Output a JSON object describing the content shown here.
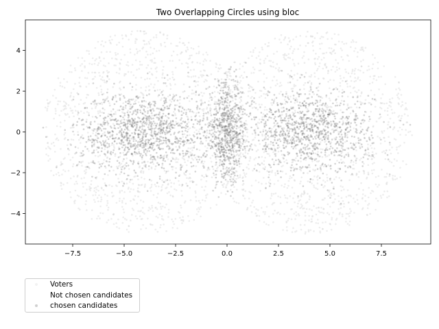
{
  "chart_data": {
    "type": "scatter",
    "title": "Two Overlapping Circles using bloc",
    "xlabel": "",
    "ylabel": "",
    "xlim": [
      -9.8,
      9.9
    ],
    "ylim": [
      -5.5,
      5.5
    ],
    "xticks": [
      "−7.5",
      "−5.0",
      "−2.5",
      "0.0",
      "2.5",
      "5.0",
      "7.5"
    ],
    "xtick_values": [
      -7.5,
      -5.0,
      -2.5,
      0.0,
      2.5,
      5.0,
      7.5
    ],
    "yticks": [
      "4",
      "2",
      "0",
      "−2",
      "−4"
    ],
    "ytick_values": [
      4,
      2,
      0,
      -2,
      -4
    ],
    "grid": false,
    "legend_placement": "below-left",
    "series": [
      {
        "name": "Voters",
        "description_shape": "two overlapping disks",
        "circles": [
          {
            "center": [
              -4.0,
              0.0
            ],
            "radius": 5.0
          },
          {
            "center": [
              4.0,
              0.0
            ],
            "radius": 5.0
          }
        ],
        "color": "#d6d6d6"
      },
      {
        "name": "Not chosen candidates",
        "color": "#ffffff"
      },
      {
        "name": "chosen candidates",
        "clusters": [
          {
            "center": [
              -4.0,
              0.0
            ],
            "spread": [
              1.6,
              1.0
            ]
          },
          {
            "center": [
              0.0,
              0.0
            ],
            "spread": [
              0.5,
              1.2
            ]
          },
          {
            "center": [
              4.0,
              0.0
            ],
            "spread": [
              1.5,
              1.0
            ]
          }
        ],
        "color": "#707070"
      }
    ]
  }
}
